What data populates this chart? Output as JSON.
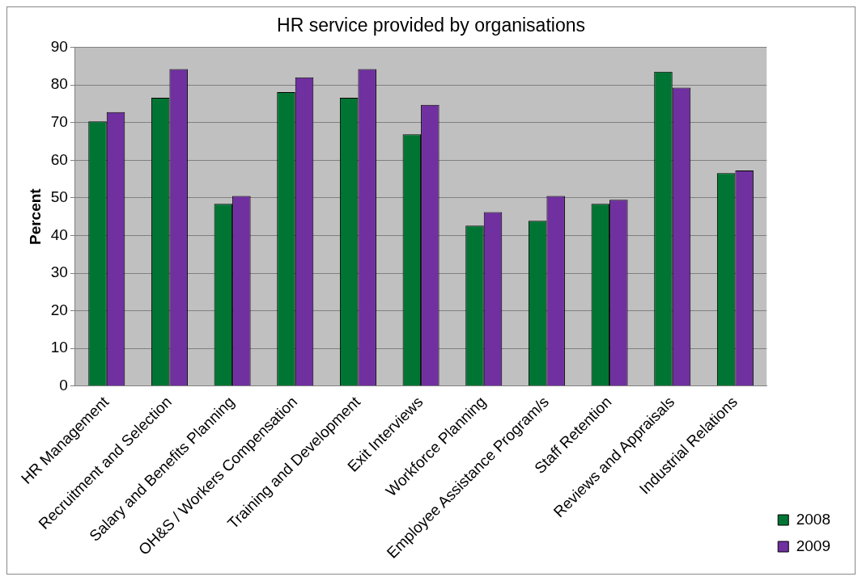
{
  "chart_data": {
    "type": "bar",
    "title": "HR service provided by organisations",
    "ylabel": "Percent",
    "categories": [
      "HR Management",
      "Recruitment and Selection",
      "Salary and Benefits Planning",
      "OH&S / Workers Compensation",
      "Training and Development",
      "Exit Interviews",
      "Workforce Planning",
      "Employee Assistance Program/s",
      "Staff Retention",
      "Reviews and Appraisals",
      "Industrial Relations"
    ],
    "series": [
      {
        "name": "2008",
        "color": "#007533",
        "values": [
          70.3,
          76.6,
          48.4,
          78.1,
          76.6,
          66.9,
          42.6,
          43.9,
          48.4,
          83.5,
          56.6
        ]
      },
      {
        "name": "2009",
        "color": "#7030a0",
        "values": [
          72.8,
          84.2,
          50.5,
          82,
          84.2,
          74.7,
          46.2,
          50.5,
          49.5,
          79.3,
          57.3
        ]
      }
    ],
    "ylim": [
      0,
      90
    ],
    "yticks": [
      0,
      10,
      20,
      30,
      40,
      50,
      60,
      70,
      80,
      90
    ],
    "grid": "y",
    "legend": "right"
  }
}
